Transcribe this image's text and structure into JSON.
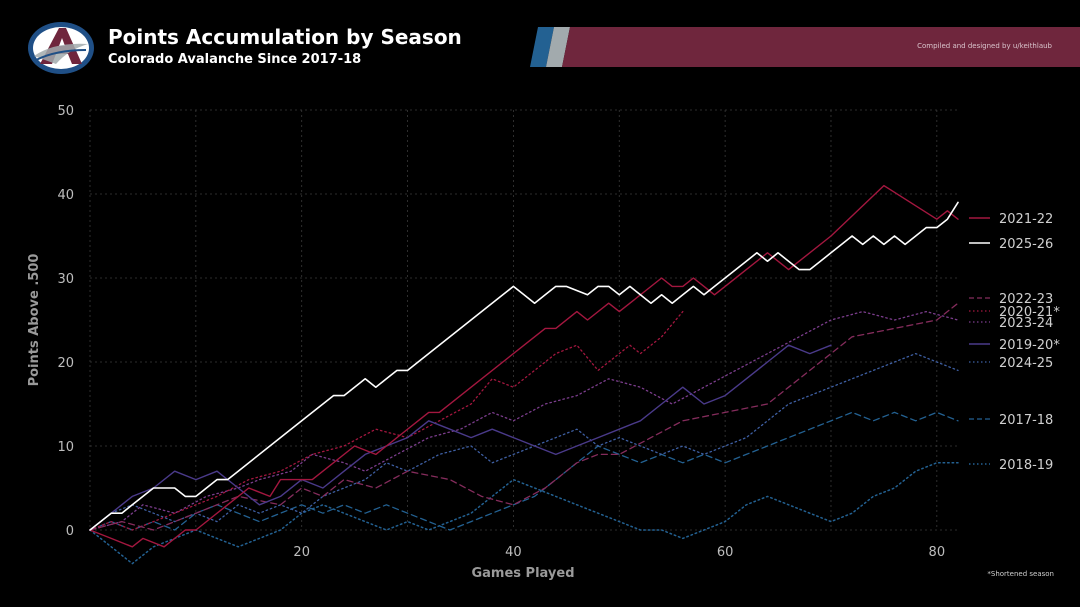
{
  "header": {
    "title": "Points Accumulation by Season",
    "subtitle": "Colorado Avalanche Since 2017-18",
    "credit": "Compiled and designed by u/keithlaub",
    "logo_icon": "avalanche-a-logo-icon",
    "banner_colors": [
      "#236192",
      "#a2aaad",
      "#6f263d"
    ]
  },
  "footnote": "*Shortened season",
  "chart_data": {
    "type": "line",
    "title": "",
    "xlabel": "Games Played",
    "ylabel": "Points Above .500",
    "xlim": [
      0,
      82
    ],
    "ylim": [
      0,
      50
    ],
    "x_ticks": [
      20,
      40,
      60,
      80
    ],
    "y_ticks": [
      0,
      10,
      20,
      30,
      40,
      50
    ],
    "grid": true,
    "legend_position": "right",
    "series": [
      {
        "name": "2021-22",
        "color": "#a3173f",
        "dash": "solid",
        "width": 1.4,
        "x": [
          0,
          2,
          4,
          5,
          7,
          9,
          10,
          14,
          15,
          17,
          18,
          21,
          25,
          27,
          28,
          32,
          33,
          42,
          43,
          44,
          46,
          47,
          49,
          50,
          51,
          54,
          55,
          56,
          57,
          58,
          59,
          60,
          62,
          64,
          66,
          67,
          70,
          75,
          80,
          81,
          82
        ],
        "y": [
          0,
          -1,
          -2,
          -1,
          -2,
          0,
          0,
          4,
          5,
          4,
          6,
          6,
          10,
          9,
          10,
          14,
          14,
          23,
          24,
          24,
          26,
          25,
          27,
          26,
          27,
          30,
          29,
          29,
          30,
          29,
          28,
          29,
          31,
          33,
          31,
          32,
          35,
          41,
          37,
          38,
          37
        ]
      },
      {
        "name": "2025-26",
        "color": "#ffffff",
        "dash": "solid",
        "width": 1.6,
        "x": [
          0,
          2,
          3,
          4,
          6,
          8,
          9,
          10,
          12,
          13,
          14,
          20,
          23,
          24,
          26,
          27,
          28,
          29,
          30,
          31,
          39,
          40,
          41,
          42,
          43,
          44,
          45,
          47,
          48,
          49,
          50,
          51,
          52,
          53,
          54,
          55,
          56,
          57,
          58,
          59,
          60,
          61,
          62,
          63,
          64,
          65,
          66,
          67,
          68,
          69,
          70,
          71,
          72,
          73,
          74,
          75,
          76,
          77,
          78,
          79,
          80,
          81,
          82
        ],
        "y": [
          0,
          2,
          2,
          3,
          5,
          5,
          4,
          4,
          6,
          6,
          7,
          13,
          16,
          16,
          18,
          17,
          18,
          19,
          19,
          20,
          28,
          29,
          28,
          27,
          28,
          29,
          29,
          28,
          29,
          29,
          28,
          29,
          28,
          27,
          28,
          27,
          28,
          29,
          28,
          29,
          30,
          31,
          32,
          33,
          32,
          33,
          32,
          31,
          31,
          32,
          33,
          34,
          35,
          34,
          35,
          34,
          35,
          34,
          35,
          36,
          36,
          37,
          39
        ]
      },
      {
        "name": "2022-23",
        "color": "#852c5c",
        "dash": "dash",
        "width": 1.3,
        "x": [
          0,
          3,
          6,
          10,
          14,
          18,
          20,
          22,
          24,
          27,
          30,
          34,
          37,
          40,
          43,
          46,
          48,
          50,
          53,
          56,
          60,
          64,
          68,
          72,
          76,
          80,
          82
        ],
        "y": [
          0,
          1,
          0,
          2,
          4,
          3,
          5,
          4,
          6,
          5,
          7,
          6,
          4,
          3,
          5,
          8,
          9,
          9,
          11,
          13,
          14,
          15,
          19,
          23,
          24,
          25,
          27
        ]
      },
      {
        "name": "2020-21*",
        "color": "#a3173f",
        "dash": "dot",
        "width": 1.3,
        "x": [
          0,
          2,
          4,
          6,
          8,
          10,
          12,
          15,
          18,
          21,
          24,
          27,
          30,
          33,
          36,
          38,
          40,
          42,
          44,
          46,
          48,
          50,
          51,
          52,
          54,
          56
        ],
        "y": [
          0,
          1,
          0,
          1,
          2,
          3,
          4,
          6,
          7,
          9,
          10,
          12,
          11,
          13,
          15,
          18,
          17,
          19,
          21,
          22,
          19,
          21,
          22,
          21,
          23,
          26
        ]
      },
      {
        "name": "2023-24",
        "color": "#7b3d8c",
        "dash": "dot",
        "width": 1.3,
        "x": [
          0,
          3,
          5,
          8,
          11,
          14,
          16,
          19,
          21,
          24,
          26,
          29,
          32,
          35,
          38,
          40,
          43,
          46,
          49,
          52,
          55,
          58,
          61,
          64,
          67,
          70,
          73,
          76,
          79,
          82
        ],
        "y": [
          0,
          1,
          3,
          2,
          4,
          5,
          6,
          7,
          9,
          8,
          7,
          9,
          11,
          12,
          14,
          13,
          15,
          16,
          18,
          17,
          15,
          17,
          19,
          21,
          23,
          25,
          26,
          25,
          26,
          25
        ]
      },
      {
        "name": "2019-20*",
        "color": "#4a3a8a",
        "dash": "solid",
        "width": 1.4,
        "x": [
          0,
          2,
          4,
          6,
          8,
          10,
          12,
          14,
          16,
          18,
          20,
          22,
          24,
          26,
          28,
          30,
          32,
          34,
          36,
          38,
          40,
          42,
          44,
          46,
          48,
          50,
          52,
          54,
          56,
          58,
          60,
          62,
          64,
          66,
          68,
          70
        ],
        "y": [
          0,
          2,
          4,
          5,
          7,
          6,
          7,
          5,
          3,
          4,
          6,
          5,
          7,
          9,
          10,
          11,
          13,
          12,
          11,
          12,
          11,
          10,
          9,
          10,
          11,
          12,
          13,
          15,
          17,
          15,
          16,
          18,
          20,
          22,
          21,
          22
        ]
      },
      {
        "name": "2024-25",
        "color": "#3e5fa3",
        "dash": "dot",
        "width": 1.3,
        "x": [
          0,
          2,
          4,
          6,
          8,
          10,
          12,
          14,
          16,
          18,
          20,
          22,
          24,
          26,
          28,
          30,
          33,
          36,
          38,
          40,
          42,
          44,
          46,
          48,
          50,
          52,
          54,
          56,
          58,
          60,
          62,
          64,
          66,
          68,
          70,
          72,
          74,
          76,
          78,
          80,
          82
        ],
        "y": [
          0,
          2,
          3,
          2,
          1,
          2,
          1,
          3,
          2,
          3,
          2,
          4,
          5,
          6,
          8,
          7,
          9,
          10,
          8,
          9,
          10,
          11,
          12,
          10,
          11,
          10,
          9,
          10,
          9,
          10,
          11,
          13,
          15,
          16,
          17,
          18,
          19,
          20,
          21,
          20,
          19
        ]
      },
      {
        "name": "2017-18",
        "color": "#236192",
        "dash": "dash",
        "width": 1.3,
        "x": [
          0,
          2,
          4,
          6,
          8,
          10,
          12,
          14,
          16,
          18,
          20,
          22,
          24,
          26,
          28,
          30,
          32,
          34,
          36,
          38,
          40,
          42,
          44,
          46,
          48,
          50,
          52,
          54,
          56,
          58,
          60,
          62,
          64,
          66,
          68,
          70,
          72,
          74,
          76,
          78,
          80,
          82
        ],
        "y": [
          0,
          1,
          0,
          1,
          0,
          2,
          3,
          2,
          1,
          2,
          3,
          2,
          3,
          2,
          3,
          2,
          1,
          0,
          1,
          2,
          3,
          4,
          6,
          8,
          10,
          9,
          8,
          9,
          8,
          9,
          8,
          9,
          10,
          11,
          12,
          13,
          14,
          13,
          14,
          13,
          14,
          13
        ]
      },
      {
        "name": "2018-19",
        "color": "#236192",
        "dash": "dot",
        "width": 1.5,
        "x": [
          0,
          2,
          4,
          6,
          8,
          10,
          12,
          14,
          16,
          18,
          20,
          22,
          24,
          26,
          28,
          30,
          32,
          34,
          36,
          38,
          40,
          42,
          44,
          46,
          48,
          50,
          52,
          54,
          56,
          58,
          60,
          62,
          64,
          66,
          68,
          70,
          72,
          74,
          76,
          78,
          80,
          82
        ],
        "y": [
          0,
          -2,
          -4,
          -2,
          -1,
          0,
          -1,
          -2,
          -1,
          0,
          2,
          3,
          2,
          1,
          0,
          1,
          0,
          1,
          2,
          4,
          6,
          5,
          4,
          3,
          2,
          1,
          0,
          0,
          -1,
          0,
          1,
          3,
          4,
          3,
          2,
          1,
          2,
          4,
          5,
          7,
          8,
          8
        ]
      }
    ]
  }
}
